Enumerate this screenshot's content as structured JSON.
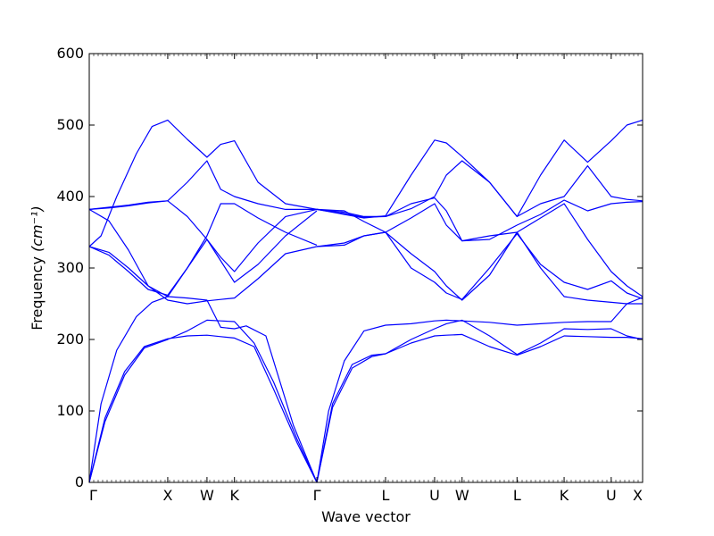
{
  "chart_data": {
    "type": "line",
    "title": "",
    "xlabel": "Wave vector",
    "ylabel": "Frequency",
    "ylabel_unit": "(cm⁻¹)",
    "ylim": [
      0,
      600
    ],
    "yticks": [
      0,
      100,
      200,
      300,
      400,
      500,
      600
    ],
    "x_domain": [
      0,
      14.1
    ],
    "grid": false,
    "line_color": "#0000ff",
    "points": [
      {
        "label": "Γ",
        "x": 0
      },
      {
        "label": "X",
        "x": 2.0
      },
      {
        "label": "W",
        "x": 3.0
      },
      {
        "label": "K",
        "x": 3.7
      },
      {
        "label": "Γ",
        "x": 5.8
      },
      {
        "label": "L",
        "x": 7.55
      },
      {
        "label": "U",
        "x": 8.8
      },
      {
        "label": "W",
        "x": 9.5
      },
      {
        "label": "L",
        "x": 10.9
      },
      {
        "label": "K",
        "x": 12.1
      },
      {
        "label": "U",
        "x": 13.3
      },
      {
        "label": "X",
        "x": 14.1
      }
    ],
    "series": [
      {
        "x": [
          0,
          0.4,
          0.9,
          1.4,
          2.0,
          2.5,
          3.0,
          3.35,
          3.7,
          4.2,
          4.7,
          5.3,
          5.8
        ],
        "y": [
          0,
          90,
          155,
          190,
          201,
          205,
          206,
          204,
          202,
          190,
          130,
          55,
          0
        ]
      },
      {
        "x": [
          0,
          0.4,
          0.9,
          1.4,
          2.0,
          2.5,
          3.0,
          3.35,
          3.7,
          4.2,
          4.7,
          5.3,
          5.8
        ],
        "y": [
          0,
          85,
          150,
          188,
          200,
          212,
          227,
          226,
          225,
          195,
          140,
          60,
          0
        ]
      },
      {
        "x": [
          0,
          0.3,
          0.7,
          1.2,
          1.6,
          2.0,
          2.5,
          3.0,
          3.35,
          3.7,
          4.0,
          4.5,
          5.2,
          5.8
        ],
        "y": [
          0,
          110,
          185,
          232,
          252,
          260,
          258,
          255,
          217,
          215,
          219,
          205,
          80,
          0
        ]
      },
      {
        "x": [
          0,
          0.5,
          1.0,
          1.5,
          2.0,
          2.5,
          3.0,
          3.35,
          3.7,
          4.3,
          5.0,
          5.8
        ],
        "y": [
          330,
          322,
          300,
          275,
          255,
          250,
          254,
          256,
          258,
          285,
          320,
          330
        ]
      },
      {
        "x": [
          0,
          0.5,
          1.0,
          1.5,
          2.0,
          2.5,
          3.0,
          3.35,
          3.7,
          4.3,
          5.0,
          5.8
        ],
        "y": [
          330,
          318,
          295,
          270,
          262,
          300,
          340,
          310,
          280,
          305,
          345,
          380
        ]
      },
      {
        "x": [
          0,
          0.5,
          1.0,
          1.5,
          2.0,
          2.5,
          3.0,
          3.35,
          3.7,
          4.3,
          5.0,
          5.8
        ],
        "y": [
          382,
          366,
          325,
          275,
          260,
          300,
          345,
          390,
          390,
          370,
          350,
          332
        ]
      },
      {
        "x": [
          0,
          0.5,
          1.0,
          1.5,
          2.0,
          2.5,
          3.0,
          3.35,
          3.7,
          4.3,
          5.0,
          5.8
        ],
        "y": [
          382,
          385,
          388,
          392,
          394,
          372,
          340,
          315,
          295,
          335,
          372,
          382
        ]
      },
      {
        "x": [
          0,
          0.5,
          1.0,
          1.5,
          2.0,
          2.5,
          3.0,
          3.35,
          3.7,
          4.3,
          5.0,
          5.8
        ],
        "y": [
          382,
          384,
          387,
          391,
          394,
          420,
          450,
          410,
          400,
          390,
          382,
          382
        ]
      },
      {
        "x": [
          0,
          0.3,
          0.7,
          1.2,
          1.6,
          2.0,
          2.5,
          3.0,
          3.35,
          3.7,
          4.3,
          5.0,
          5.8
        ],
        "y": [
          330,
          345,
          400,
          460,
          498,
          507,
          480,
          455,
          473,
          478,
          420,
          390,
          382
        ]
      },
      {
        "x": [
          5.8,
          6.2,
          6.7,
          7.2,
          7.55,
          8.2,
          8.8,
          9.1,
          9.5,
          10.2,
          10.9,
          11.5,
          12.1,
          12.7,
          13.3,
          13.7,
          14.1
        ],
        "y": [
          0,
          110,
          165,
          178,
          180,
          195,
          205,
          206,
          207,
          190,
          178,
          190,
          205,
          204,
          203,
          203,
          201
        ]
      },
      {
        "x": [
          5.8,
          6.2,
          6.7,
          7.2,
          7.55,
          8.2,
          8.8,
          9.1,
          9.5,
          10.2,
          10.9,
          11.5,
          12.1,
          12.7,
          13.3,
          13.7,
          14.1
        ],
        "y": [
          0,
          105,
          160,
          176,
          180,
          200,
          215,
          222,
          227,
          205,
          179,
          195,
          215,
          214,
          215,
          205,
          200
        ]
      },
      {
        "x": [
          5.8,
          6.1,
          6.5,
          7.0,
          7.55,
          8.2,
          8.8,
          9.1,
          9.5,
          10.2,
          10.9,
          11.5,
          12.1,
          12.7,
          13.3,
          13.7,
          14.1
        ],
        "y": [
          0,
          100,
          170,
          212,
          220,
          222,
          226,
          227,
          226,
          224,
          220,
          222,
          224,
          225,
          225,
          250,
          259
        ]
      },
      {
        "x": [
          5.8,
          6.5,
          7.0,
          7.55,
          8.2,
          8.8,
          9.1,
          9.5,
          10.2,
          10.9,
          11.5,
          12.1,
          12.7,
          13.3,
          13.7,
          14.1
        ],
        "y": [
          330,
          332,
          345,
          350,
          320,
          295,
          275,
          255,
          290,
          350,
          300,
          260,
          255,
          252,
          250,
          250
        ]
      },
      {
        "x": [
          5.8,
          6.5,
          7.0,
          7.55,
          8.2,
          8.8,
          9.1,
          9.5,
          10.2,
          10.9,
          11.5,
          12.1,
          12.7,
          13.3,
          13.7,
          14.1
        ],
        "y": [
          330,
          335,
          345,
          350,
          300,
          280,
          265,
          256,
          300,
          348,
          305,
          280,
          270,
          282,
          265,
          257
        ]
      },
      {
        "x": [
          5.8,
          6.5,
          7.0,
          7.55,
          8.2,
          8.8,
          9.1,
          9.5,
          10.2,
          10.9,
          11.5,
          12.1,
          12.7,
          13.3,
          13.7,
          14.1
        ],
        "y": [
          382,
          380,
          365,
          350,
          370,
          390,
          360,
          338,
          345,
          350,
          370,
          390,
          340,
          295,
          275,
          260
        ]
      },
      {
        "x": [
          5.8,
          6.5,
          7.0,
          7.55,
          8.2,
          8.8,
          9.1,
          9.5,
          10.2,
          10.9,
          11.5,
          12.1,
          12.7,
          13.3,
          13.7,
          14.1
        ],
        "y": [
          382,
          378,
          372,
          372,
          390,
          398,
          380,
          338,
          340,
          360,
          375,
          395,
          380,
          390,
          392,
          393
        ]
      },
      {
        "x": [
          5.8,
          6.5,
          7.0,
          7.55,
          8.2,
          8.8,
          9.1,
          9.5,
          10.2,
          10.9,
          11.5,
          12.1,
          12.7,
          13.3,
          13.7,
          14.1
        ],
        "y": [
          382,
          376,
          371,
          372,
          383,
          400,
          430,
          450,
          420,
          372,
          390,
          400,
          443,
          400,
          396,
          394
        ]
      },
      {
        "x": [
          5.8,
          6.5,
          7.0,
          7.55,
          8.2,
          8.8,
          9.1,
          9.5,
          10.2,
          10.9,
          11.5,
          12.1,
          12.7,
          13.3,
          13.7,
          14.1
        ],
        "y": [
          382,
          375,
          370,
          373,
          430,
          479,
          475,
          456,
          420,
          372,
          430,
          479,
          448,
          478,
          500,
          507
        ]
      }
    ]
  }
}
